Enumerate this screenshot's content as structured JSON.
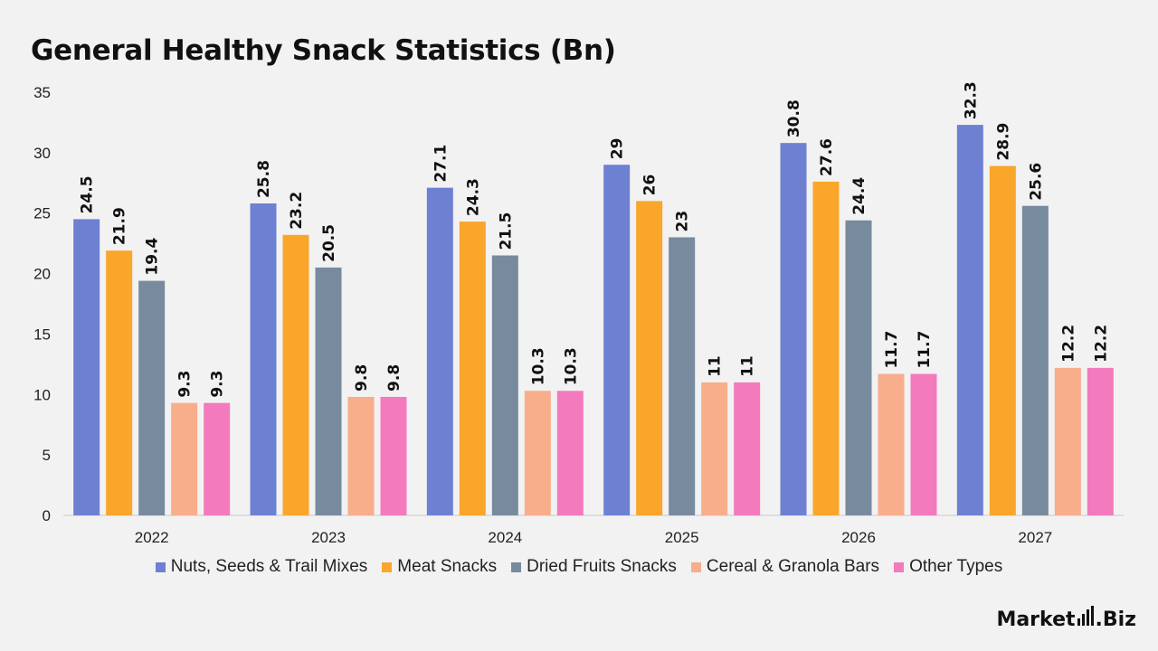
{
  "chart_data": {
    "type": "bar",
    "title": "General Healthy Snack Statistics (Bn)",
    "categories": [
      "2022",
      "2023",
      "2024",
      "2025",
      "2026",
      "2027"
    ],
    "ylim": [
      0,
      35
    ],
    "yticks": [
      0,
      5,
      10,
      15,
      20,
      25,
      30,
      35
    ],
    "grid": false,
    "legend_position": "bottom",
    "series": [
      {
        "name": "Nuts, Seeds & Trail Mixes",
        "color": "#6e80d2",
        "values": [
          24.5,
          25.8,
          27.1,
          29,
          30.8,
          32.3
        ]
      },
      {
        "name": "Meat Snacks",
        "color": "#f9a62b",
        "values": [
          21.9,
          23.2,
          24.3,
          26,
          27.6,
          28.9
        ]
      },
      {
        "name": "Dried Fruits Snacks",
        "color": "#778a9e",
        "values": [
          19.4,
          20.5,
          21.5,
          23,
          24.4,
          25.6
        ]
      },
      {
        "name": "Cereal & Granola Bars",
        "color": "#f8ad8b",
        "values": [
          9.3,
          9.8,
          10.3,
          11,
          11.7,
          12.2
        ]
      },
      {
        "name": "Other Types",
        "color": "#f27abd",
        "values": [
          9.3,
          9.8,
          10.3,
          11,
          11.7,
          12.2
        ]
      }
    ]
  },
  "branding": {
    "logo_text_main": "Market",
    "logo_text_suffix": ".Biz"
  }
}
